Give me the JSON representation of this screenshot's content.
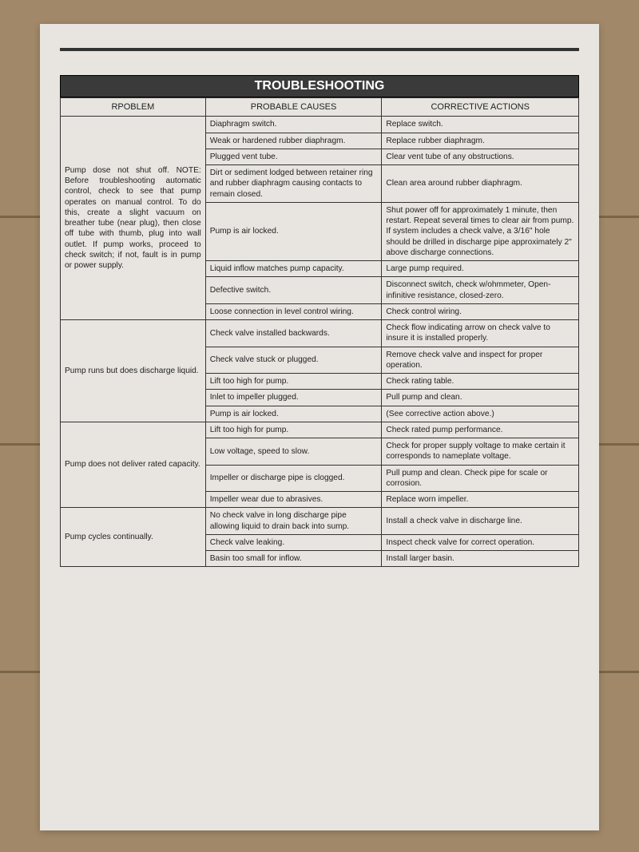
{
  "title": "TROUBLESHOOTING",
  "columns": [
    "RPOBLEM",
    "PROBABLE CAUSES",
    "CORRECTIVE ACTIONS"
  ],
  "sections": [
    {
      "problem": "Pump dose not shut off. NOTE: Before troubleshooting automatic control, check to see that pump operates on manual control. To do this, create a slight vacuum on breather tube (near plug), then close off tube with thumb, plug into wall outlet. If pump works, proceed to check switch; if not, fault is in pump or power supply.",
      "rows": [
        {
          "cause": "Diaphragm switch.",
          "action": "Replace switch."
        },
        {
          "cause": "Weak or hardened rubber diaphragm.",
          "action": "Replace rubber diaphragm."
        },
        {
          "cause": "Plugged vent tube.",
          "action": "Clear vent tube of any obstructions."
        },
        {
          "cause": "Dirt or sediment lodged between retainer ring and rubber diaphragm causing contacts to remain closed.",
          "action": "Clean area around rubber diaphragm."
        },
        {
          "cause": "Pump is air locked.",
          "action": "Shut power off for approximately 1 minute, then restart. Repeat several times to clear air from pump. If system includes a check valve, a 3/16\" hole should be drilled in discharge pipe approximately 2\" above discharge connections."
        },
        {
          "cause": "Liquid inflow matches pump capacity.",
          "action": "Large pump required."
        },
        {
          "cause": "Defective switch.",
          "action": "Disconnect switch, check w/ohmmeter, Open-infinitive resistance, closed-zero."
        },
        {
          "cause": "Loose connection in level control wiring.",
          "action": "Check control wiring."
        }
      ]
    },
    {
      "problem": "Pump runs but does discharge liquid.",
      "rows": [
        {
          "cause": "Check valve installed backwards.",
          "action": "Check flow indicating arrow on check valve to insure it is installed properly."
        },
        {
          "cause": "Check valve stuck or plugged.",
          "action": "Remove check valve and inspect for proper operation."
        },
        {
          "cause": "Lift too high for pump.",
          "action": "Check rating table."
        },
        {
          "cause": "Inlet to impeller plugged.",
          "action": "Pull pump and clean."
        },
        {
          "cause": "Pump is  air locked.",
          "action": " (See corrective action above.)"
        }
      ]
    },
    {
      "problem": "Pump does not deliver rated capacity.",
      "rows": [
        {
          "cause": "Lift too high for pump.",
          "action": "Check rated pump performance."
        },
        {
          "cause": "Low voltage, speed to slow.",
          "action": "Check for proper supply voltage to make certain it corresponds to nameplate voltage."
        },
        {
          "cause": "Impeller or discharge pipe is clogged.",
          "action": "Pull pump and clean. Check pipe for scale or corrosion."
        },
        {
          "cause": "Impeller wear due to abrasives.",
          "action": "Replace worn impeller."
        }
      ]
    },
    {
      "problem": "Pump cycles continually.",
      "rows": [
        {
          "cause": "No check valve in long discharge pipe allowing liquid to drain back into sump.",
          "action": "Install a check valve in discharge line."
        },
        {
          "cause": "Check valve leaking.",
          "action": "Inspect check valve for correct operation."
        },
        {
          "cause": "Basin too small for inflow.",
          "action": "Install larger basin."
        }
      ]
    }
  ]
}
